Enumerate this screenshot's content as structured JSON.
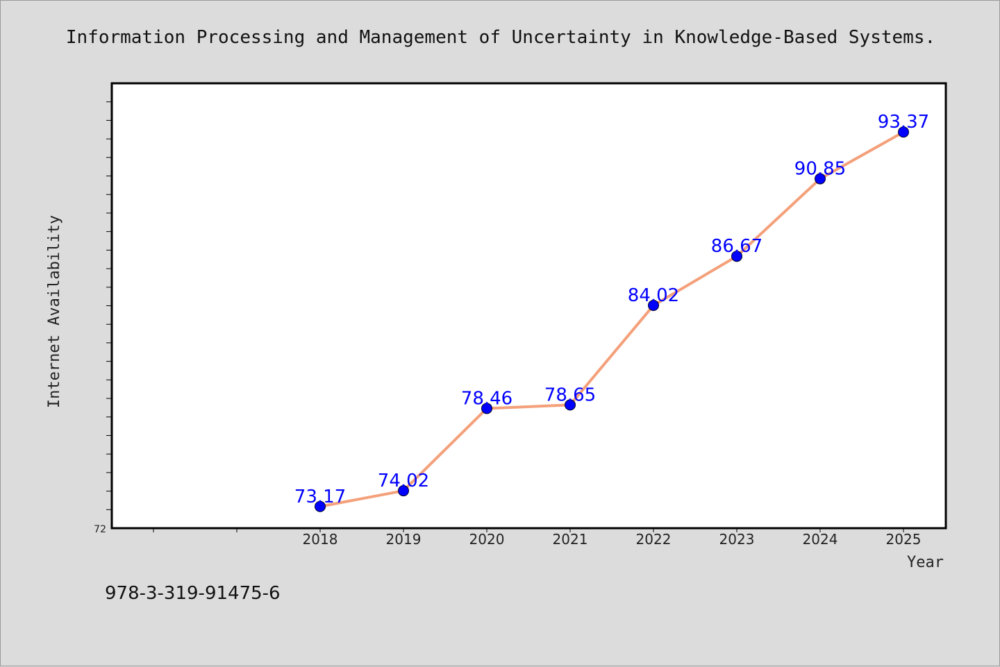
{
  "chart_data": {
    "type": "line",
    "title": "Information Processing and Management of Uncertainty in Knowledge-Based Systems.",
    "xlabel": "Year",
    "ylabel": "Internet Availability",
    "categories": [
      "2018",
      "2019",
      "2020",
      "2021",
      "2022",
      "2023",
      "2024",
      "2025"
    ],
    "series": [
      {
        "values": [
          73.17,
          74.02,
          78.46,
          78.65,
          84.02,
          86.67,
          90.85,
          93.37
        ]
      }
    ],
    "data_labels": [
      "73.17",
      "74.02",
      "78.46",
      "78.65",
      "84.02",
      "86.67",
      "90.85",
      "93.37"
    ],
    "y_tick_labels": [
      "72"
    ],
    "ylim": [
      72,
      96
    ],
    "grid": false,
    "legend": "none",
    "colors": {
      "line": "#f4a07a",
      "marker": "#0000ff",
      "data_label": "#0000ff",
      "background": "#dcdcdc",
      "plot_bg": "#ffffff"
    }
  },
  "footnote": "978-3-319-91475-6"
}
